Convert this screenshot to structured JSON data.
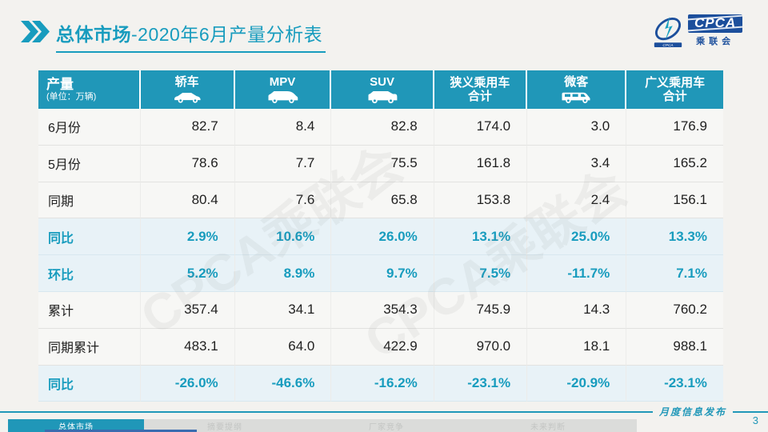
{
  "title": {
    "section": "总体市场",
    "rest": "-2020年6月产量分析表"
  },
  "logo": {
    "main": "CPCA",
    "sub": "乘联会"
  },
  "watermark": "CPCA乘联会",
  "table": {
    "corner": {
      "label": "产量",
      "unit": "(单位：万辆)"
    },
    "columns": [
      {
        "lines": [
          "轿车"
        ],
        "icon": "sedan-icon"
      },
      {
        "lines": [
          "MPV"
        ],
        "icon": "mpv-icon"
      },
      {
        "lines": [
          "SUV"
        ],
        "icon": "suv-icon"
      },
      {
        "lines": [
          "狭义乘用车",
          "合计"
        ],
        "icon": null
      },
      {
        "lines": [
          "微客"
        ],
        "icon": "microvan-icon"
      },
      {
        "lines": [
          "广义乘用车",
          "合计"
        ],
        "icon": null
      }
    ],
    "rows": [
      {
        "label": "6月份",
        "percent": false,
        "values": [
          "82.7",
          "8.4",
          "82.8",
          "174.0",
          "3.0",
          "176.9"
        ]
      },
      {
        "label": "5月份",
        "percent": false,
        "values": [
          "78.6",
          "7.7",
          "75.5",
          "161.8",
          "3.4",
          "165.2"
        ]
      },
      {
        "label": "同期",
        "percent": false,
        "values": [
          "80.4",
          "7.6",
          "65.8",
          "153.8",
          "2.4",
          "156.1"
        ]
      },
      {
        "label": "同比",
        "percent": true,
        "values": [
          "2.9%",
          "10.6%",
          "26.0%",
          "13.1%",
          "25.0%",
          "13.3%"
        ]
      },
      {
        "label": "环比",
        "percent": true,
        "values": [
          "5.2%",
          "8.9%",
          "9.7%",
          "7.5%",
          "-11.7%",
          "7.1%"
        ]
      },
      {
        "label": "累计",
        "percent": false,
        "values": [
          "357.4",
          "34.1",
          "354.3",
          "745.9",
          "14.3",
          "760.2"
        ]
      },
      {
        "label": "同期累计",
        "percent": false,
        "values": [
          "483.1",
          "64.0",
          "422.9",
          "970.0",
          "18.1",
          "988.1"
        ]
      },
      {
        "label": "同比",
        "percent": true,
        "values": [
          "-26.0%",
          "-46.6%",
          "-16.2%",
          "-23.1%",
          "-20.9%",
          "-23.1%"
        ]
      }
    ]
  },
  "footer": {
    "tabs": [
      {
        "label": "总体市场",
        "active": true
      },
      {
        "label": "摘要提纲",
        "active": false
      },
      {
        "label": "厂家竞争",
        "active": false
      },
      {
        "label": "未来判断",
        "active": false
      }
    ],
    "caption": "月度信息发布",
    "page": "3"
  },
  "colors": {
    "accent_teal": "#2097b8",
    "title_teal": "#189cbe",
    "logo_navy": "#1c4f9c",
    "percent_row_bg": "#e8f2f7",
    "row_bg": "#f7f7f5",
    "slide_bg": "#f3f2ef"
  }
}
